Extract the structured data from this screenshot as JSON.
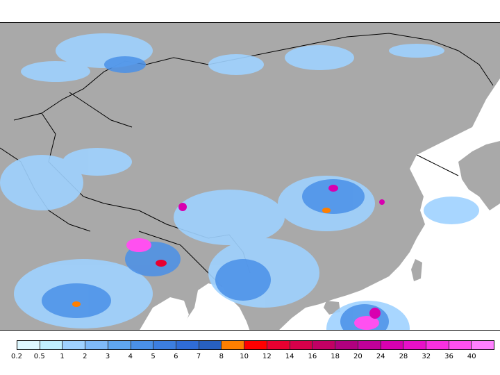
{
  "map": {
    "land_color": "#a9a9a9",
    "ocean_color": "#ffffff",
    "border_color": "#000000"
  },
  "legend": {
    "labels": [
      "0.2",
      "0.5",
      "1",
      "2",
      "3",
      "4",
      "5",
      "6",
      "7",
      "8",
      "10",
      "12",
      "14",
      "16",
      "18",
      "20",
      "24",
      "28",
      "32",
      "36",
      "40"
    ],
    "colors": [
      "#dff8ff",
      "#bff0ff",
      "#9fd2ff",
      "#7fbaf8",
      "#5fa6f0",
      "#4a90e8",
      "#3c7ee0",
      "#2f6cd6",
      "#2760c0",
      "#ff7f00",
      "#ff0000",
      "#e80030",
      "#d6004a",
      "#c20064",
      "#b0007e",
      "#c00098",
      "#d800b0",
      "#e810c8",
      "#f830e0",
      "#ff50f0",
      "#ff80ff"
    ]
  }
}
